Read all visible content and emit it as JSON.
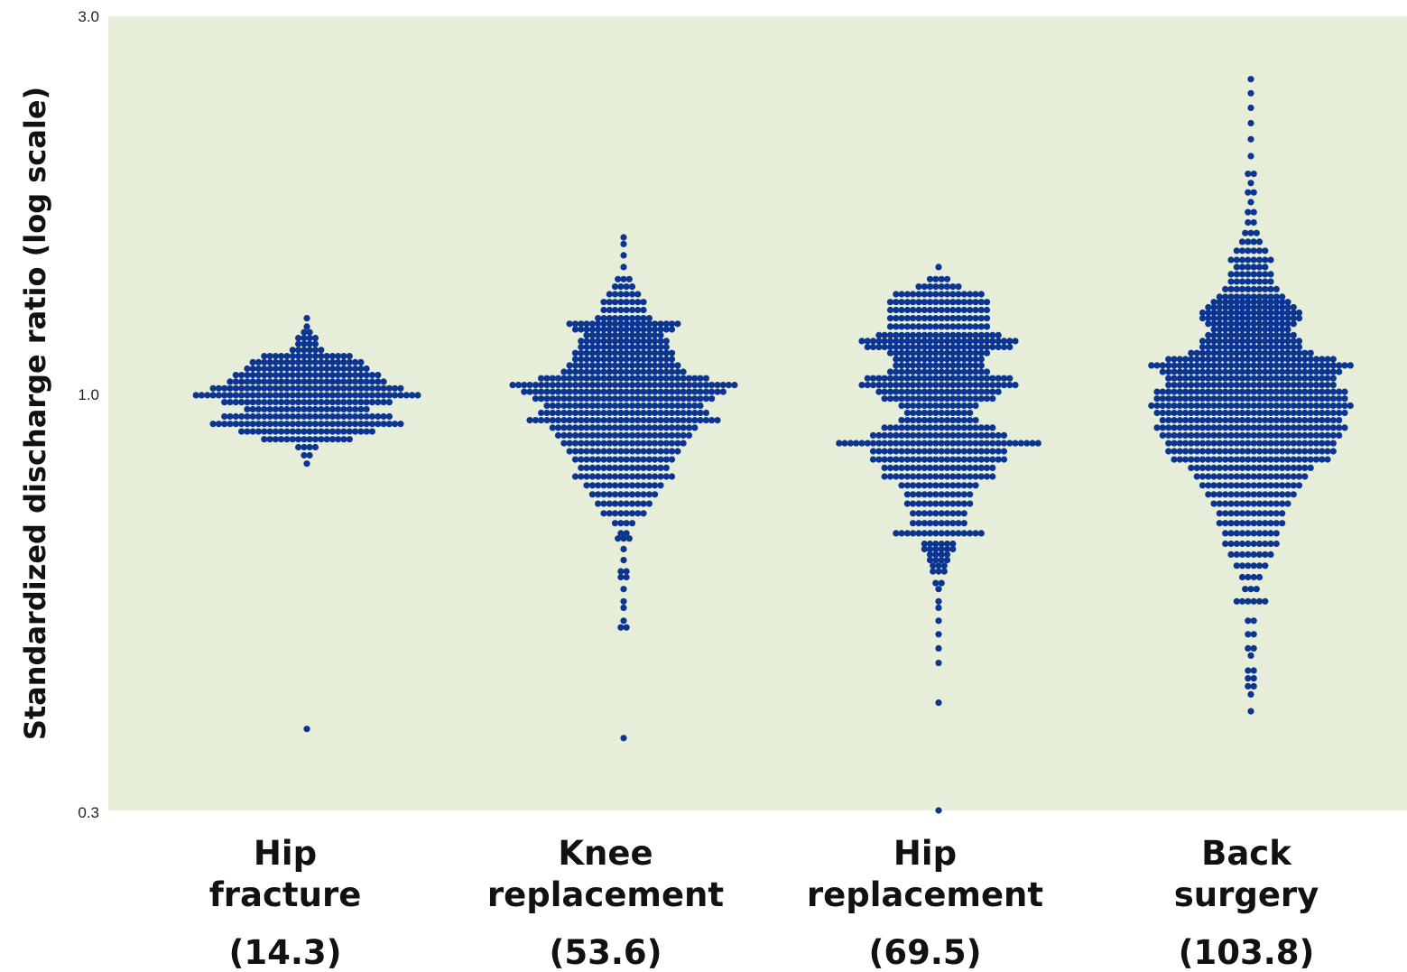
{
  "chart_data": {
    "type": "scatter",
    "subtype": "beeswarm",
    "ylabel": "Standardized discharge ratio (log scale)",
    "yscale": "log",
    "ylim": [
      0.3,
      3.0
    ],
    "yticks": [
      {
        "value": 0.3,
        "label": "0.3"
      },
      {
        "value": 1.0,
        "label": "1.0"
      },
      {
        "value": 3.0,
        "label": "3.0"
      }
    ],
    "grid": false,
    "legend": "none",
    "colors": {
      "background": "#e6edd8",
      "points": "#0b3591"
    },
    "categories": [
      {
        "line1": "Hip",
        "line2": "fracture",
        "value_label": "(14.3)"
      },
      {
        "line1": "Knee",
        "line2": "replacement",
        "value_label": "(53.6)"
      },
      {
        "line1": "Hip",
        "line2": "replacement",
        "value_label": "(69.5)"
      },
      {
        "line1": "Back",
        "line2": "surgery",
        "value_label": "(103.8)"
      }
    ],
    "series": [
      {
        "category": "Hip fracture",
        "bins": [
          {
            "y": 0.38,
            "n": 1
          },
          {
            "y": 0.82,
            "n": 1
          },
          {
            "y": 0.84,
            "n": 2
          },
          {
            "y": 0.86,
            "n": 4
          },
          {
            "y": 0.88,
            "n": 16
          },
          {
            "y": 0.9,
            "n": 24
          },
          {
            "y": 0.92,
            "n": 34
          },
          {
            "y": 0.94,
            "n": 30
          },
          {
            "y": 0.96,
            "n": 22
          },
          {
            "y": 0.98,
            "n": 30
          },
          {
            "y": 1.0,
            "n": 40
          },
          {
            "y": 1.02,
            "n": 34
          },
          {
            "y": 1.04,
            "n": 28
          },
          {
            "y": 1.06,
            "n": 26
          },
          {
            "y": 1.08,
            "n": 22
          },
          {
            "y": 1.1,
            "n": 20
          },
          {
            "y": 1.12,
            "n": 16
          },
          {
            "y": 1.14,
            "n": 6
          },
          {
            "y": 1.16,
            "n": 4
          },
          {
            "y": 1.18,
            "n": 4
          },
          {
            "y": 1.2,
            "n": 2
          },
          {
            "y": 1.22,
            "n": 1
          },
          {
            "y": 1.25,
            "n": 1
          }
        ]
      },
      {
        "category": "Knee replacement",
        "bins": [
          {
            "y": 0.37,
            "n": 1
          },
          {
            "y": 0.51,
            "n": 2
          },
          {
            "y": 0.52,
            "n": 1
          },
          {
            "y": 0.54,
            "n": 1
          },
          {
            "y": 0.55,
            "n": 1
          },
          {
            "y": 0.57,
            "n": 1
          },
          {
            "y": 0.59,
            "n": 2
          },
          {
            "y": 0.6,
            "n": 2
          },
          {
            "y": 0.62,
            "n": 1
          },
          {
            "y": 0.64,
            "n": 1
          },
          {
            "y": 0.66,
            "n": 3
          },
          {
            "y": 0.67,
            "n": 2
          },
          {
            "y": 0.69,
            "n": 4
          },
          {
            "y": 0.71,
            "n": 8
          },
          {
            "y": 0.73,
            "n": 10
          },
          {
            "y": 0.75,
            "n": 12
          },
          {
            "y": 0.77,
            "n": 14
          },
          {
            "y": 0.79,
            "n": 18
          },
          {
            "y": 0.81,
            "n": 16
          },
          {
            "y": 0.83,
            "n": 18
          },
          {
            "y": 0.85,
            "n": 20
          },
          {
            "y": 0.87,
            "n": 22
          },
          {
            "y": 0.89,
            "n": 24
          },
          {
            "y": 0.91,
            "n": 26
          },
          {
            "y": 0.93,
            "n": 34
          },
          {
            "y": 0.95,
            "n": 30
          },
          {
            "y": 0.97,
            "n": 28
          },
          {
            "y": 0.99,
            "n": 32
          },
          {
            "y": 1.01,
            "n": 36
          },
          {
            "y": 1.03,
            "n": 40
          },
          {
            "y": 1.05,
            "n": 30
          },
          {
            "y": 1.07,
            "n": 22
          },
          {
            "y": 1.09,
            "n": 20
          },
          {
            "y": 1.11,
            "n": 18
          },
          {
            "y": 1.13,
            "n": 18
          },
          {
            "y": 1.15,
            "n": 16
          },
          {
            "y": 1.17,
            "n": 16
          },
          {
            "y": 1.19,
            "n": 14
          },
          {
            "y": 1.21,
            "n": 18
          },
          {
            "y": 1.23,
            "n": 20
          },
          {
            "y": 1.25,
            "n": 10
          },
          {
            "y": 1.28,
            "n": 8
          },
          {
            "y": 1.31,
            "n": 8
          },
          {
            "y": 1.34,
            "n": 6
          },
          {
            "y": 1.37,
            "n": 4
          },
          {
            "y": 1.4,
            "n": 3
          },
          {
            "y": 1.45,
            "n": 1
          },
          {
            "y": 1.5,
            "n": 1
          },
          {
            "y": 1.55,
            "n": 1
          },
          {
            "y": 1.58,
            "n": 1
          }
        ]
      },
      {
        "category": "Hip replacement",
        "bins": [
          {
            "y": 0.3,
            "n": 1
          },
          {
            "y": 0.41,
            "n": 1
          },
          {
            "y": 0.46,
            "n": 1
          },
          {
            "y": 0.48,
            "n": 1
          },
          {
            "y": 0.5,
            "n": 1
          },
          {
            "y": 0.52,
            "n": 1
          },
          {
            "y": 0.54,
            "n": 1
          },
          {
            "y": 0.55,
            "n": 1
          },
          {
            "y": 0.57,
            "n": 1
          },
          {
            "y": 0.58,
            "n": 2
          },
          {
            "y": 0.6,
            "n": 3
          },
          {
            "y": 0.61,
            "n": 3
          },
          {
            "y": 0.62,
            "n": 4
          },
          {
            "y": 0.63,
            "n": 4
          },
          {
            "y": 0.64,
            "n": 6
          },
          {
            "y": 0.65,
            "n": 6
          },
          {
            "y": 0.67,
            "n": 16
          },
          {
            "y": 0.69,
            "n": 10
          },
          {
            "y": 0.71,
            "n": 10
          },
          {
            "y": 0.73,
            "n": 12
          },
          {
            "y": 0.75,
            "n": 12
          },
          {
            "y": 0.77,
            "n": 14
          },
          {
            "y": 0.79,
            "n": 20
          },
          {
            "y": 0.81,
            "n": 20
          },
          {
            "y": 0.83,
            "n": 24
          },
          {
            "y": 0.85,
            "n": 24
          },
          {
            "y": 0.87,
            "n": 36
          },
          {
            "y": 0.89,
            "n": 24
          },
          {
            "y": 0.91,
            "n": 20
          },
          {
            "y": 0.93,
            "n": 14
          },
          {
            "y": 0.95,
            "n": 12
          },
          {
            "y": 0.97,
            "n": 14
          },
          {
            "y": 0.99,
            "n": 20
          },
          {
            "y": 1.01,
            "n": 22
          },
          {
            "y": 1.03,
            "n": 28
          },
          {
            "y": 1.05,
            "n": 26
          },
          {
            "y": 1.07,
            "n": 18
          },
          {
            "y": 1.09,
            "n": 16
          },
          {
            "y": 1.11,
            "n": 16
          },
          {
            "y": 1.13,
            "n": 18
          },
          {
            "y": 1.15,
            "n": 26
          },
          {
            "y": 1.17,
            "n": 28
          },
          {
            "y": 1.19,
            "n": 22
          },
          {
            "y": 1.22,
            "n": 18
          },
          {
            "y": 1.25,
            "n": 18
          },
          {
            "y": 1.28,
            "n": 18
          },
          {
            "y": 1.31,
            "n": 18
          },
          {
            "y": 1.34,
            "n": 16
          },
          {
            "y": 1.37,
            "n": 8
          },
          {
            "y": 1.4,
            "n": 4
          },
          {
            "y": 1.45,
            "n": 1
          }
        ]
      },
      {
        "category": "Back surgery",
        "bins": [
          {
            "y": 0.4,
            "n": 1
          },
          {
            "y": 0.42,
            "n": 1
          },
          {
            "y": 0.43,
            "n": 2
          },
          {
            "y": 0.44,
            "n": 2
          },
          {
            "y": 0.45,
            "n": 2
          },
          {
            "y": 0.47,
            "n": 1
          },
          {
            "y": 0.48,
            "n": 2
          },
          {
            "y": 0.5,
            "n": 2
          },
          {
            "y": 0.52,
            "n": 2
          },
          {
            "y": 0.55,
            "n": 6
          },
          {
            "y": 0.57,
            "n": 3
          },
          {
            "y": 0.59,
            "n": 4
          },
          {
            "y": 0.61,
            "n": 6
          },
          {
            "y": 0.63,
            "n": 8
          },
          {
            "y": 0.65,
            "n": 10
          },
          {
            "y": 0.67,
            "n": 10
          },
          {
            "y": 0.69,
            "n": 12
          },
          {
            "y": 0.71,
            "n": 12
          },
          {
            "y": 0.73,
            "n": 14
          },
          {
            "y": 0.75,
            "n": 16
          },
          {
            "y": 0.77,
            "n": 18
          },
          {
            "y": 0.79,
            "n": 20
          },
          {
            "y": 0.81,
            "n": 22
          },
          {
            "y": 0.83,
            "n": 28
          },
          {
            "y": 0.85,
            "n": 30
          },
          {
            "y": 0.87,
            "n": 30
          },
          {
            "y": 0.89,
            "n": 32
          },
          {
            "y": 0.91,
            "n": 34
          },
          {
            "y": 0.93,
            "n": 32
          },
          {
            "y": 0.95,
            "n": 34
          },
          {
            "y": 0.97,
            "n": 36
          },
          {
            "y": 0.99,
            "n": 34
          },
          {
            "y": 1.01,
            "n": 34
          },
          {
            "y": 1.03,
            "n": 30
          },
          {
            "y": 1.05,
            "n": 30
          },
          {
            "y": 1.07,
            "n": 32
          },
          {
            "y": 1.09,
            "n": 36
          },
          {
            "y": 1.11,
            "n": 30
          },
          {
            "y": 1.13,
            "n": 22
          },
          {
            "y": 1.15,
            "n": 18
          },
          {
            "y": 1.17,
            "n": 18
          },
          {
            "y": 1.19,
            "n": 16
          },
          {
            "y": 1.21,
            "n": 14
          },
          {
            "y": 1.23,
            "n": 16
          },
          {
            "y": 1.25,
            "n": 18
          },
          {
            "y": 1.27,
            "n": 18
          },
          {
            "y": 1.29,
            "n": 16
          },
          {
            "y": 1.31,
            "n": 14
          },
          {
            "y": 1.33,
            "n": 12
          },
          {
            "y": 1.36,
            "n": 10
          },
          {
            "y": 1.39,
            "n": 8
          },
          {
            "y": 1.42,
            "n": 8
          },
          {
            "y": 1.45,
            "n": 6
          },
          {
            "y": 1.48,
            "n": 8
          },
          {
            "y": 1.52,
            "n": 6
          },
          {
            "y": 1.56,
            "n": 4
          },
          {
            "y": 1.6,
            "n": 3
          },
          {
            "y": 1.65,
            "n": 2
          },
          {
            "y": 1.7,
            "n": 2
          },
          {
            "y": 1.75,
            "n": 1
          },
          {
            "y": 1.8,
            "n": 2
          },
          {
            "y": 1.85,
            "n": 1
          },
          {
            "y": 1.9,
            "n": 2
          },
          {
            "y": 2.0,
            "n": 1
          },
          {
            "y": 2.1,
            "n": 1
          },
          {
            "y": 2.2,
            "n": 1
          },
          {
            "y": 2.3,
            "n": 1
          },
          {
            "y": 2.4,
            "n": 1
          },
          {
            "y": 2.5,
            "n": 1
          }
        ]
      }
    ]
  }
}
